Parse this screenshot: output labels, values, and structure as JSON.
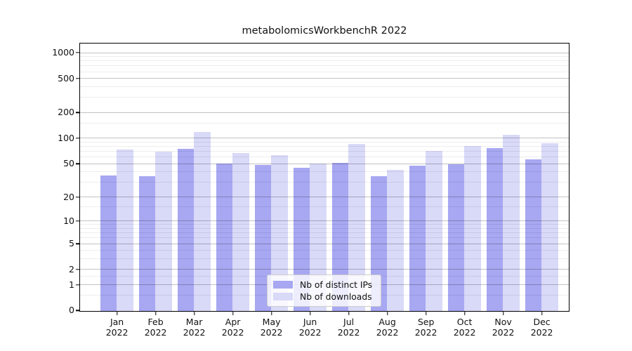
{
  "title": "metabolomicsWorkbenchR 2022",
  "chart_data": {
    "type": "bar",
    "title": "metabolomicsWorkbenchR 2022",
    "categories": [
      "Jan 2022",
      "Feb 2022",
      "Mar 2022",
      "Apr 2022",
      "May 2022",
      "Jun 2022",
      "Jul 2022",
      "Aug 2022",
      "Sep 2022",
      "Oct 2022",
      "Nov 2022",
      "Dec 2022"
    ],
    "series": [
      {
        "name": "Nb of distinct IPs",
        "color": "#a7a7f2",
        "values": [
          37,
          36,
          76,
          51,
          49,
          45,
          52,
          36,
          48,
          50,
          78,
          57
        ]
      },
      {
        "name": "Nb of downloads",
        "color": "#d9d9f8",
        "values": [
          75,
          70,
          120,
          68,
          64,
          51,
          87,
          43,
          72,
          82,
          111,
          88
        ]
      }
    ],
    "xlabel": "",
    "ylabel": "",
    "yscale": "pseudo-log (log10(x+1))",
    "yticks_major": [
      0,
      1,
      2,
      5,
      10,
      20,
      50,
      100,
      200,
      500,
      1000
    ],
    "yticks_minor": [
      0.5,
      1.5,
      3,
      4,
      6,
      7,
      8,
      9,
      15,
      30,
      40,
      60,
      70,
      80,
      90,
      150,
      300,
      400,
      600,
      700,
      800,
      900
    ],
    "ylim": [
      0,
      1265
    ],
    "grid": true,
    "grid_axis": "y",
    "legend_position": "lower center"
  },
  "colors": {
    "background": "#ffffff",
    "axis": "#000000",
    "text": "#111111",
    "grid_major": "rgba(0,0,0,0.24)",
    "grid_minor": "rgba(0,0,0,0.07)",
    "bar_distinct_ips": "#a7a7f2",
    "bar_downloads": "#d9d9f8"
  }
}
